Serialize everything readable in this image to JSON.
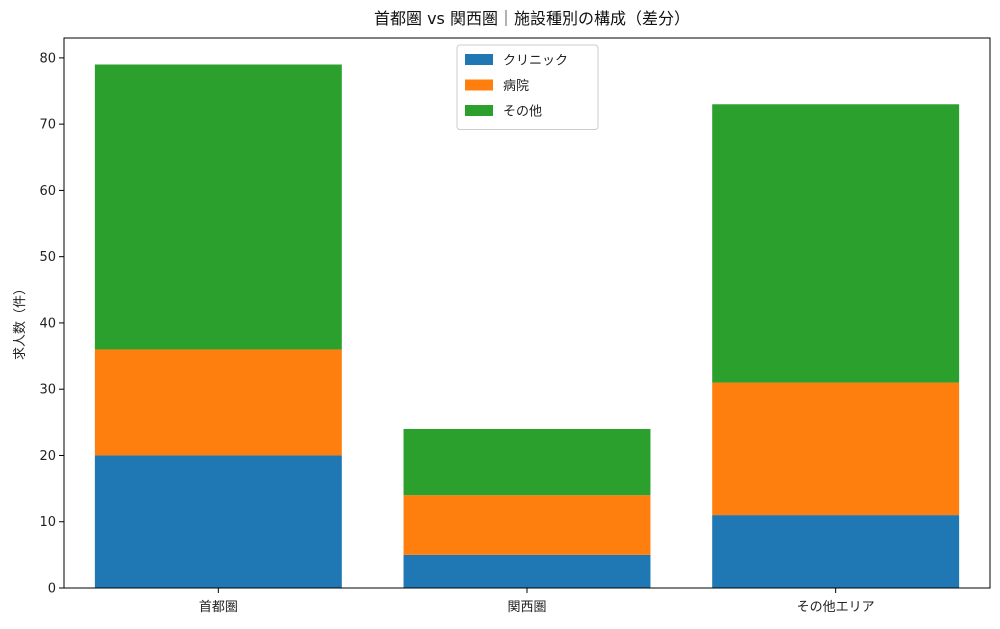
{
  "chart_data": {
    "type": "bar",
    "stacked": true,
    "title": "首都圏 vs 関西圏｜施設種別の構成（差分）",
    "xlabel": "",
    "ylabel": "求人数（件）",
    "categories": [
      "首都圏",
      "関西圏",
      "その他エリア"
    ],
    "series": [
      {
        "name": "クリニック",
        "color": "#1f77b4",
        "values": [
          20,
          5,
          11
        ]
      },
      {
        "name": "病院",
        "color": "#ff7f0e",
        "values": [
          16,
          9,
          20
        ]
      },
      {
        "name": "その他",
        "color": "#2ca02c",
        "values": [
          43,
          10,
          42
        ]
      }
    ],
    "ylim": [
      0,
      83
    ],
    "yticks": [
      0,
      10,
      20,
      30,
      40,
      50,
      60,
      70,
      80
    ],
    "grid": false,
    "legend_position": "top-center"
  }
}
